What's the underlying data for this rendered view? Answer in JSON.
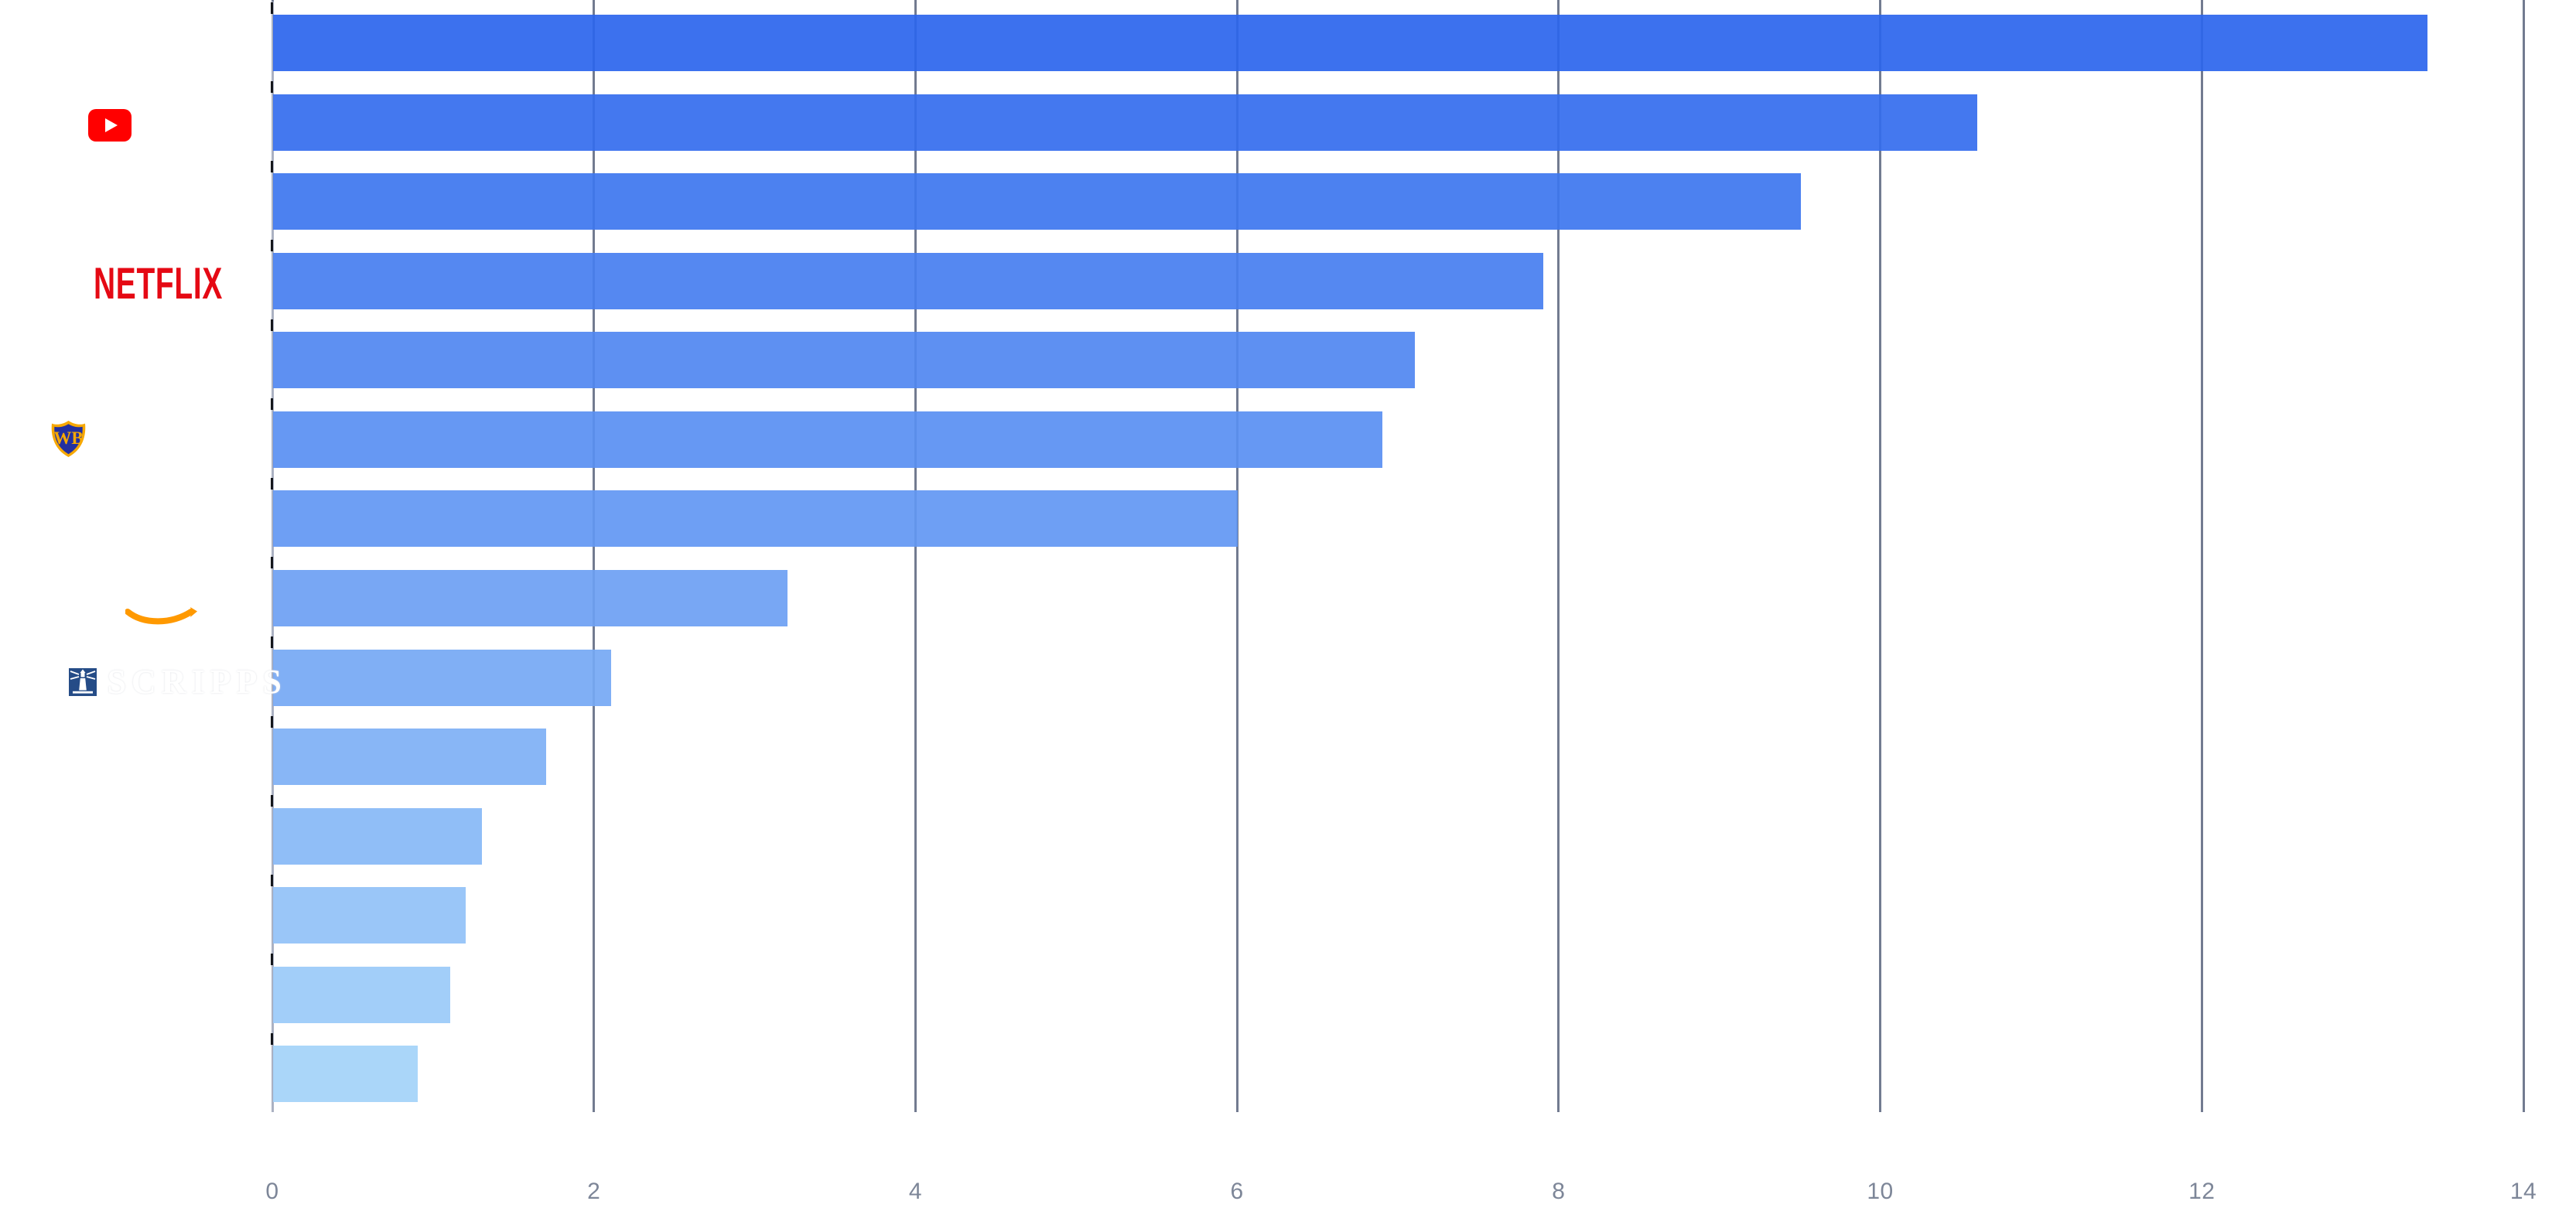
{
  "chart_data": {
    "type": "bar",
    "orientation": "horizontal",
    "title": "",
    "xlabel": "",
    "ylabel": "",
    "xlim": [
      0,
      14
    ],
    "x_tick_labels": [
      "0",
      "2",
      "4",
      "6",
      "8",
      "10",
      "12",
      "14"
    ],
    "grid": true,
    "legend": false,
    "categories": [
      "",
      "YouTube",
      "",
      "Netflix",
      "",
      "Warner Bros",
      "",
      "Amazon",
      "Scripps",
      "",
      "",
      "",
      "",
      ""
    ],
    "values": [
      13.4,
      10.6,
      9.5,
      7.9,
      7.1,
      6.9,
      6.0,
      3.2,
      2.1,
      1.7,
      1.3,
      1.2,
      1.1,
      0.9
    ],
    "bar_colors": [
      "#2B65ED",
      "#346DEE",
      "#3D76EF",
      "#477EF0",
      "#5087F1",
      "#598FF2",
      "#6297F3",
      "#6CA0F3",
      "#75A8F4",
      "#7EB0F5",
      "#87B9F6",
      "#91C1F7",
      "#9ACAF8",
      "#A3D2F9"
    ]
  },
  "logos": {
    "youtube": "youtube-play-button",
    "netflix_text": "NETFLIX",
    "warner_bros_text": "WB",
    "amazon": "amazon-smile-arrow",
    "scripps_text": "SCRIPPS"
  },
  "colors": {
    "background": "#FFFFFF",
    "gridline": "#727B90",
    "axis_line": "#ABB1C2",
    "axis_tick": "#15171C",
    "tick_label": "#7D8698",
    "youtube_red": "#FF0000",
    "netflix_red": "#E50914",
    "wb_gold": "#F7A800",
    "wb_navy": "#2330A0",
    "amazon_orange": "#FF9900",
    "scripps_navy": "#254C87"
  }
}
